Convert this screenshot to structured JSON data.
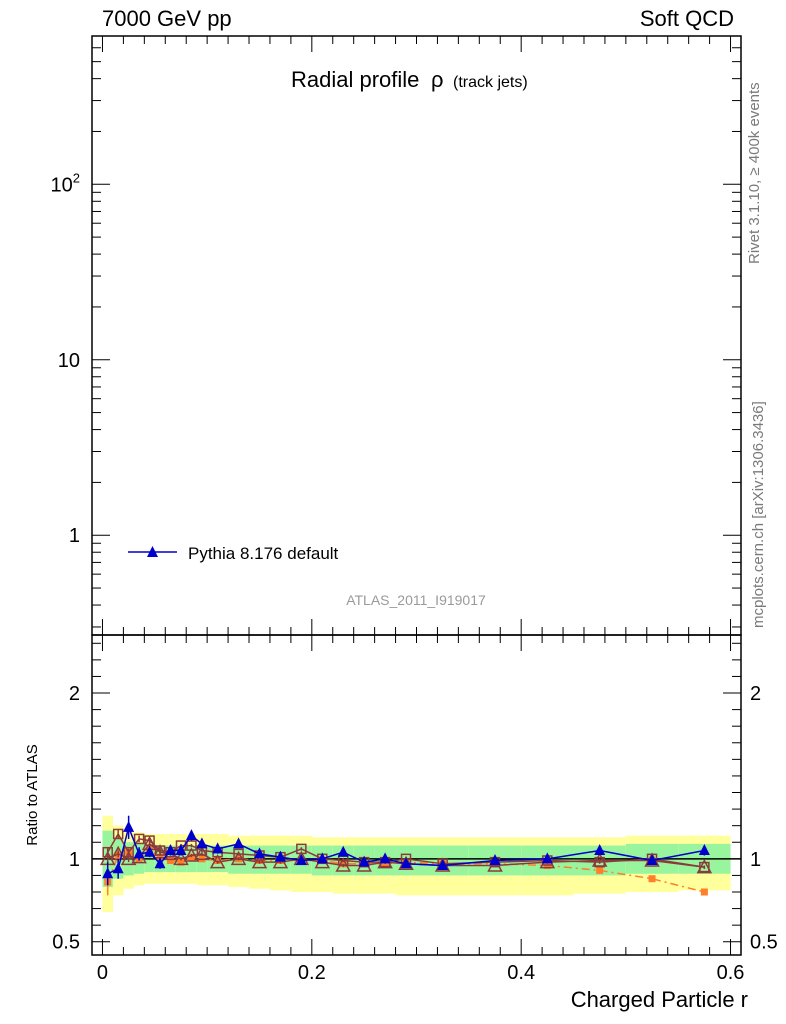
{
  "header": {
    "left": "7000 GeV pp",
    "right": "Soft QCD"
  },
  "plot_title": {
    "main": "Radial profile",
    "symbol": "ρ",
    "suffix": "(track jets)"
  },
  "watermark": "ATLAS_2011_I919017",
  "side_top": "Rivet 3.1.10, ≥ 400k events",
  "side_bottom": "mcplots.cern.ch [arXiv:1306.3436]",
  "ratio_ylabel": "Ratio to ATLAS",
  "xlabel": "Charged Particle r",
  "legend": {
    "label": "Pythia 8.176 default"
  },
  "colors": {
    "pythia": "#0000cc",
    "orange": "#ff7f2a",
    "brown": "#8b3a3a",
    "band_inner": "#99f59d",
    "band_outer": "#ffff9c"
  },
  "chart_data": {
    "type": "line",
    "x_range": [
      -0.01,
      0.61
    ],
    "x_ticks": [
      "0",
      "0.2",
      "0.4",
      "0.6"
    ],
    "main_panel": {
      "y_scale": "log",
      "y_range": [
        0.27,
        700
      ],
      "y_tick_labels": [
        "1",
        "10",
        "10^2"
      ],
      "y_tick_values": [
        1,
        10,
        100
      ]
    },
    "ratio_panel": {
      "y_range": [
        0.42,
        2.35
      ],
      "y_tick_labels": [
        "0.5",
        "1",
        "2"
      ],
      "y_tick_values": [
        0.5,
        1,
        2
      ],
      "reference": 1,
      "bands": {
        "x_edges": [
          0.0,
          0.01,
          0.02,
          0.03,
          0.04,
          0.05,
          0.06,
          0.07,
          0.08,
          0.09,
          0.1,
          0.12,
          0.14,
          0.16,
          0.18,
          0.2,
          0.22,
          0.24,
          0.26,
          0.28,
          0.3,
          0.35,
          0.4,
          0.45,
          0.5,
          0.55,
          0.6
        ],
        "inner_low": [
          0.83,
          0.88,
          0.9,
          0.91,
          0.92,
          0.92,
          0.92,
          0.92,
          0.92,
          0.92,
          0.92,
          0.91,
          0.91,
          0.91,
          0.91,
          0.9,
          0.9,
          0.9,
          0.9,
          0.9,
          0.9,
          0.9,
          0.9,
          0.9,
          0.91,
          0.91
        ],
        "inner_high": [
          1.17,
          1.12,
          1.1,
          1.09,
          1.08,
          1.08,
          1.08,
          1.08,
          1.08,
          1.08,
          1.08,
          1.08,
          1.08,
          1.08,
          1.08,
          1.08,
          1.08,
          1.08,
          1.08,
          1.08,
          1.08,
          1.08,
          1.08,
          1.08,
          1.09,
          1.09
        ],
        "outer_low": [
          0.68,
          0.78,
          0.82,
          0.84,
          0.85,
          0.85,
          0.85,
          0.85,
          0.85,
          0.84,
          0.84,
          0.83,
          0.82,
          0.81,
          0.8,
          0.8,
          0.79,
          0.79,
          0.79,
          0.78,
          0.78,
          0.78,
          0.78,
          0.79,
          0.8,
          0.81
        ],
        "outer_high": [
          1.26,
          1.2,
          1.17,
          1.16,
          1.15,
          1.15,
          1.15,
          1.15,
          1.15,
          1.15,
          1.15,
          1.14,
          1.14,
          1.14,
          1.14,
          1.13,
          1.13,
          1.13,
          1.13,
          1.13,
          1.13,
          1.13,
          1.13,
          1.13,
          1.14,
          1.14
        ]
      },
      "series": [
        {
          "name": "Pythia 8.176 default",
          "marker": "filled-triangle",
          "color": "#0000cc",
          "style": "solid",
          "x": [
            0.005,
            0.015,
            0.025,
            0.035,
            0.045,
            0.055,
            0.065,
            0.075,
            0.085,
            0.095,
            0.11,
            0.13,
            0.15,
            0.17,
            0.19,
            0.21,
            0.23,
            0.25,
            0.27,
            0.29,
            0.325,
            0.375,
            0.425,
            0.475,
            0.525,
            0.575
          ],
          "y": [
            0.91,
            0.94,
            1.19,
            1.03,
            1.04,
            0.97,
            1.05,
            1.05,
            1.14,
            1.09,
            1.06,
            1.09,
            1.03,
            1.01,
            0.99,
            1.0,
            1.04,
            0.98,
            1.0,
            0.97,
            0.96,
            0.99,
            1.0,
            1.05,
            0.99,
            1.05
          ],
          "err": [
            0.07,
            0.06,
            0.07,
            0.04,
            0.03,
            0.03,
            0.03,
            0.03,
            0.03,
            0.02,
            0.02,
            0.02,
            0.02,
            0.02,
            0.02,
            0.02,
            0.02,
            0.02,
            0.02,
            0.02,
            0.01,
            0.01,
            0.01,
            0.01,
            0.01,
            0.03
          ]
        },
        {
          "name": "",
          "marker": "filled-square",
          "color": "#ff7f2a",
          "style": "dashdot",
          "x": [
            0.005,
            0.015,
            0.025,
            0.035,
            0.045,
            0.055,
            0.065,
            0.075,
            0.085,
            0.095,
            0.11,
            0.13,
            0.15,
            0.17,
            0.19,
            0.21,
            0.23,
            0.25,
            0.27,
            0.29,
            0.325,
            0.375,
            0.425,
            0.475,
            0.525,
            0.575
          ],
          "y": [
            0.86,
            1.02,
            1.04,
            1.0,
            1.06,
            1.01,
            0.99,
            0.98,
            1.01,
            1.0,
            0.99,
            1.0,
            0.99,
            0.99,
            0.99,
            0.99,
            0.97,
            0.97,
            0.97,
            0.98,
            0.97,
            0.97,
            0.96,
            0.93,
            0.88,
            0.8
          ],
          "err": [
            0.08,
            0.04,
            0.03,
            0.02,
            0.02,
            0.02,
            0.01,
            0.01,
            0.01,
            0.01,
            0.01,
            0.01,
            0.01,
            0.01,
            0.01,
            0.01,
            0.01,
            0.01,
            0.01,
            0.01,
            0.01,
            0.01,
            0.01,
            0.01,
            0.01,
            0.02
          ]
        },
        {
          "name": "",
          "marker": "open-square",
          "color": "#8b3a3a",
          "style": "solid",
          "x": [
            0.005,
            0.015,
            0.025,
            0.035,
            0.045,
            0.055,
            0.065,
            0.075,
            0.085,
            0.095,
            0.11,
            0.13,
            0.15,
            0.17,
            0.19,
            0.21,
            0.23,
            0.25,
            0.27,
            0.29,
            0.325,
            0.375,
            0.425,
            0.475,
            0.525,
            0.575
          ],
          "y": [
            1.04,
            1.15,
            1.04,
            1.12,
            1.11,
            1.05,
            1.04,
            1.08,
            1.08,
            1.05,
            1.04,
            1.03,
            1.02,
            1.01,
            1.06,
            1.0,
            0.99,
            0.98,
            0.98,
            1.0,
            0.97,
            0.98,
            0.99,
            0.98,
            1.0,
            0.95
          ],
          "err": [
            0.03,
            0.03,
            0.02,
            0.02,
            0.02,
            0.02,
            0.01,
            0.01,
            0.01,
            0.01,
            0.01,
            0.01,
            0.01,
            0.01,
            0.01,
            0.01,
            0.01,
            0.01,
            0.01,
            0.01,
            0.01,
            0.01,
            0.01,
            0.01,
            0.01,
            0.01
          ]
        },
        {
          "name": "",
          "marker": "open-triangle",
          "color": "#8b3a3a",
          "style": "solid",
          "x": [
            0.005,
            0.015,
            0.025,
            0.035,
            0.045,
            0.055,
            0.065,
            0.075,
            0.085,
            0.095,
            0.11,
            0.13,
            0.15,
            0.17,
            0.19,
            0.21,
            0.23,
            0.25,
            0.27,
            0.29,
            0.325,
            0.375,
            0.425,
            0.475,
            0.525,
            0.575
          ],
          "y": [
            1.0,
            1.03,
            1.0,
            1.01,
            1.09,
            1.04,
            1.03,
            1.0,
            1.02,
            1.03,
            0.98,
            1.0,
            0.98,
            0.98,
            1.0,
            0.98,
            0.96,
            0.96,
            0.98,
            0.97,
            0.96,
            0.96,
            0.98,
            0.99,
            0.99,
            0.95
          ],
          "err": [
            0.03,
            0.02,
            0.02,
            0.02,
            0.02,
            0.02,
            0.01,
            0.01,
            0.01,
            0.01,
            0.01,
            0.01,
            0.01,
            0.01,
            0.01,
            0.01,
            0.01,
            0.01,
            0.01,
            0.01,
            0.01,
            0.01,
            0.01,
            0.01,
            0.01,
            0.01
          ]
        }
      ]
    }
  }
}
